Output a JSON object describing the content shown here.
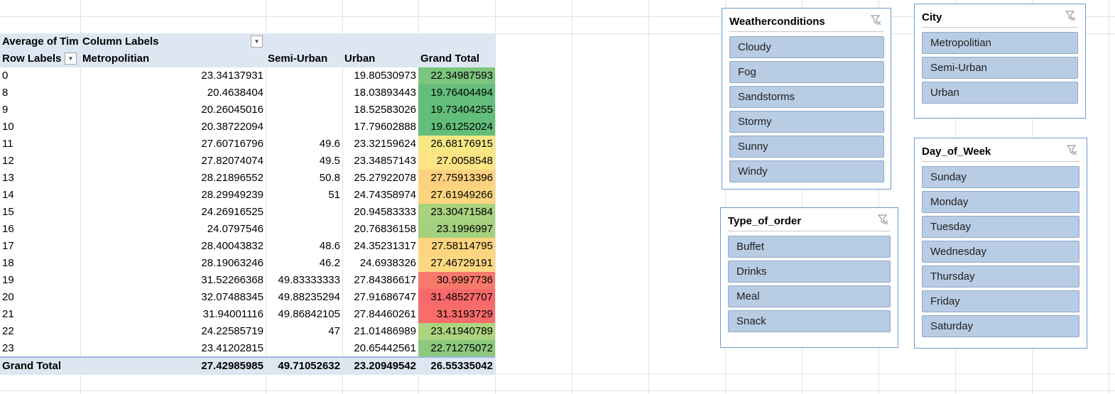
{
  "pivot": {
    "value_field_label": "Average of Tim",
    "column_labels_header": "Column Labels",
    "row_labels_header": "Row Labels",
    "columns": [
      "Metropolitian",
      "Semi-Urban",
      "Urban",
      "Grand Total"
    ],
    "rows": [
      {
        "label": "0",
        "values": [
          "23.34137931",
          "",
          "19.80530973",
          "22.34987593"
        ],
        "color": "#7cc57e"
      },
      {
        "label": "8",
        "values": [
          "20.4638404",
          "",
          "18.03893443",
          "19.76404494"
        ],
        "color": "#63be7b"
      },
      {
        "label": "9",
        "values": [
          "20.26045016",
          "",
          "18.52583026",
          "19.73404255"
        ],
        "color": "#63be7b"
      },
      {
        "label": "10",
        "values": [
          "20.38722094",
          "",
          "17.79602888",
          "19.61252024"
        ],
        "color": "#63be7b"
      },
      {
        "label": "11",
        "values": [
          "27.60716796",
          "49.6",
          "23.32159624",
          "26.68176915"
        ],
        "color": "#f7e884"
      },
      {
        "label": "12",
        "values": [
          "27.82074074",
          "49.5",
          "23.34857143",
          "27.0058548"
        ],
        "color": "#fee483"
      },
      {
        "label": "13",
        "values": [
          "28.21896552",
          "50.8",
          "25.27922078",
          "27.75913396"
        ],
        "color": "#fdd17f"
      },
      {
        "label": "14",
        "values": [
          "28.29949239",
          "51",
          "24.74358974",
          "27.61949266"
        ],
        "color": "#fdd57f"
      },
      {
        "label": "15",
        "values": [
          "24.26916525",
          "",
          "20.94583333",
          "23.30471584"
        ],
        "color": "#a8d27f"
      },
      {
        "label": "16",
        "values": [
          "24.0797546",
          "",
          "20.76836158",
          "23.1996997"
        ],
        "color": "#a4d17e"
      },
      {
        "label": "17",
        "values": [
          "28.40043832",
          "48.6",
          "24.35231317",
          "27.58114795"
        ],
        "color": "#fdd57f"
      },
      {
        "label": "18",
        "values": [
          "28.19063246",
          "46.2",
          "24.6938326",
          "27.46729191"
        ],
        "color": "#fdd880"
      },
      {
        "label": "19",
        "values": [
          "31.52266368",
          "49.83333333",
          "27.84386617",
          "30.9997736"
        ],
        "color": "#f8796b"
      },
      {
        "label": "20",
        "values": [
          "32.07488345",
          "49.88235294",
          "27.91686747",
          "31.48527707"
        ],
        "color": "#f8696b"
      },
      {
        "label": "21",
        "values": [
          "31.94001116",
          "49.86842105",
          "27.84460261",
          "31.3193729"
        ],
        "color": "#f86d6b"
      },
      {
        "label": "22",
        "values": [
          "24.22585719",
          "47",
          "21.01486989",
          "23.41940789"
        ],
        "color": "#add47f"
      },
      {
        "label": "23",
        "values": [
          "23.41202815",
          "",
          "20.65442561",
          "22.71275072"
        ],
        "color": "#8cc97e"
      }
    ],
    "grand_total": {
      "label": "Grand Total",
      "values": [
        "27.42985985",
        "49.71052632",
        "23.20949542",
        "26.55335042"
      ]
    }
  },
  "slicers": {
    "weather": {
      "title": "Weatherconditions",
      "items": [
        "Cloudy",
        "Fog",
        "Sandstorms",
        "Stormy",
        "Sunny",
        "Windy"
      ]
    },
    "city": {
      "title": "City",
      "items": [
        "Metropolitian",
        "Semi-Urban",
        "Urban"
      ]
    },
    "order": {
      "title": "Type_of_order",
      "items": [
        "Buffet",
        "Drinks",
        "Meal",
        "Snack"
      ]
    },
    "day": {
      "title": "Day_of_Week",
      "items": [
        "Sunday",
        "Monday",
        "Tuesday",
        "Wednesday",
        "Thursday",
        "Friday",
        "Saturday"
      ]
    }
  },
  "icons": {
    "clear_filter": "clear-filter-icon",
    "dropdown": "dropdown-arrow-icon"
  }
}
